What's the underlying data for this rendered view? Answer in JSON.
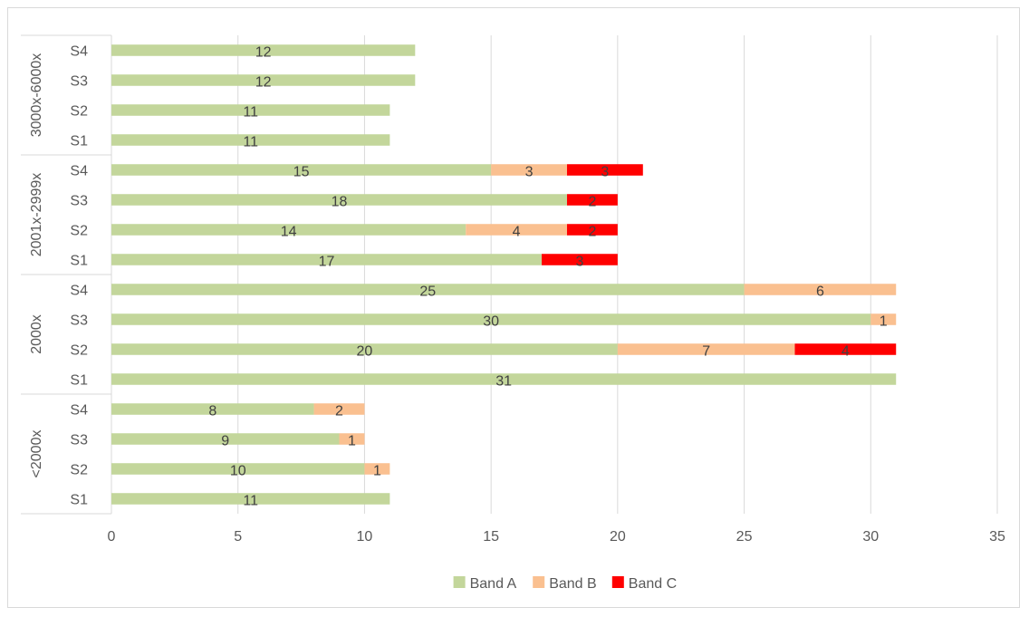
{
  "chart_data": {
    "type": "bar",
    "orientation": "horizontal",
    "stacked": true,
    "title": "",
    "xlabel": "",
    "ylabel": "",
    "xlim": [
      0,
      35
    ],
    "x_ticks": [
      0,
      5,
      10,
      15,
      20,
      25,
      30,
      35
    ],
    "grid": true,
    "legend_position": "bottom",
    "groups": [
      {
        "name": "<2000x",
        "categories": [
          "S1",
          "S2",
          "S3",
          "S4"
        ]
      },
      {
        "name": "2000x",
        "categories": [
          "S1",
          "S2",
          "S3",
          "S4"
        ]
      },
      {
        "name": "2001x-2999x",
        "categories": [
          "S1",
          "S2",
          "S3",
          "S4"
        ]
      },
      {
        "name": "3000x-6000x",
        "categories": [
          "S1",
          "S2",
          "S3",
          "S4"
        ]
      }
    ],
    "series": [
      {
        "name": "Band A",
        "color": "#c3d69b",
        "values": [
          11,
          10,
          9,
          8,
          31,
          20,
          30,
          25,
          17,
          14,
          18,
          15,
          11,
          11,
          12,
          12
        ]
      },
      {
        "name": "Band B",
        "color": "#fac090",
        "values": [
          null,
          1,
          1,
          2,
          null,
          7,
          1,
          6,
          null,
          4,
          null,
          3,
          null,
          null,
          null,
          null
        ]
      },
      {
        "name": "Band C",
        "color": "#ff0000",
        "values": [
          null,
          null,
          null,
          null,
          null,
          4,
          null,
          null,
          3,
          2,
          2,
          3,
          null,
          null,
          null,
          null
        ]
      }
    ]
  }
}
